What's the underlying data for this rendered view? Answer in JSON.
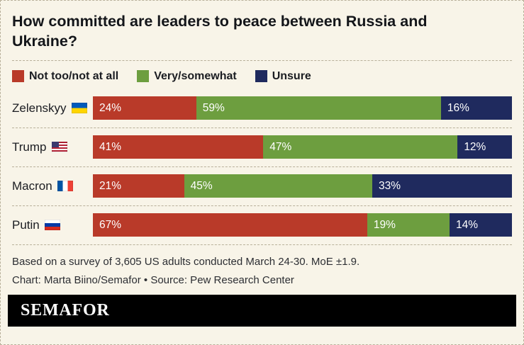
{
  "title": "How committed are leaders to peace between Russia and Ukraine?",
  "colors": {
    "background": "#f8f4e8",
    "red": "#b93a29",
    "green": "#6d9e3f",
    "navy": "#1f2a5e",
    "dashed_line": "#b8b09a"
  },
  "legend": [
    {
      "label": "Not too/not at all",
      "color": "#b93a29",
      "icon": "red-swatch-icon"
    },
    {
      "label": "Very/somewhat",
      "color": "#6d9e3f",
      "icon": "green-swatch-icon"
    },
    {
      "label": "Unsure",
      "color": "#1f2a5e",
      "icon": "navy-swatch-icon"
    }
  ],
  "chart_data": {
    "type": "bar",
    "orientation": "horizontal",
    "stacked": true,
    "title": "How committed are leaders to peace between Russia and Ukraine?",
    "categories": [
      "Zelenskyy",
      "Trump",
      "Macron",
      "Putin"
    ],
    "series": [
      {
        "name": "Not too/not at all",
        "color": "#b93a29",
        "values": [
          24,
          41,
          21,
          67
        ]
      },
      {
        "name": "Very/somewhat",
        "color": "#6d9e3f",
        "values": [
          59,
          47,
          45,
          19
        ]
      },
      {
        "name": "Unsure",
        "color": "#1f2a5e",
        "values": [
          16,
          12,
          33,
          14
        ]
      }
    ],
    "xlim": [
      0,
      100
    ],
    "value_suffix": "%",
    "legend_position": "top",
    "grid": false
  },
  "rows": [
    {
      "label": "Zelenskyy",
      "flag_icon": "ukraine-flag-icon",
      "values": [
        "24%",
        "59%",
        "16%"
      ]
    },
    {
      "label": "Trump",
      "flag_icon": "usa-flag-icon",
      "values": [
        "41%",
        "47%",
        "12%"
      ]
    },
    {
      "label": "Macron",
      "flag_icon": "france-flag-icon",
      "values": [
        "21%",
        "45%",
        "33%"
      ]
    },
    {
      "label": "Putin",
      "flag_icon": "russia-flag-icon",
      "values": [
        "67%",
        "19%",
        "14%"
      ]
    }
  ],
  "notes": {
    "survey": "Based on a survey of 3,605 US adults conducted March 24-30. MoE ±1.9.",
    "credit": "Chart: Marta Biino/Semafor • Source: Pew Research Center"
  },
  "footer": {
    "brand": "SEMAFOR"
  }
}
